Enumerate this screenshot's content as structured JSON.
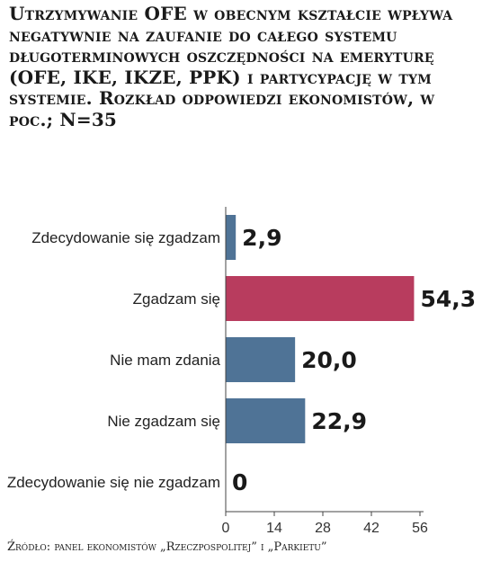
{
  "title": "Utrzymywanie OFE w obecnym kształcie wpływa negatywnie na zaufanie do całego systemu długoterminowych oszczędności na emeryturę (OFE, IKE, IKZE, PPK) i partycypację w tym systemie. Rozkład odpowiedzi ekonomistów, w poc.; N=35",
  "source": "Źródło: panel ekonomistów „Rzeczpospolitej” i „Parkietu”",
  "chart_data": {
    "type": "bar",
    "orientation": "horizontal",
    "categories": [
      "Zdecydowanie się zgadzam",
      "Zgadzam się",
      "Nie mam zdania",
      "Nie zgadzam się",
      "Zdecydowanie się nie zgadzam"
    ],
    "values": [
      2.9,
      54.3,
      20.0,
      22.9,
      0
    ],
    "value_labels": [
      "2,9",
      "54,3",
      "20,0",
      "22,9",
      "0"
    ],
    "xlim": [
      0,
      56
    ],
    "xticks": [
      0,
      14,
      28,
      42,
      56
    ],
    "xtick_labels": [
      "0",
      "14",
      "28",
      "42",
      "56"
    ],
    "colors": {
      "default": "#4f7396",
      "highlight": "#b83c5e",
      "highlight_index": 1
    },
    "grid": false
  }
}
